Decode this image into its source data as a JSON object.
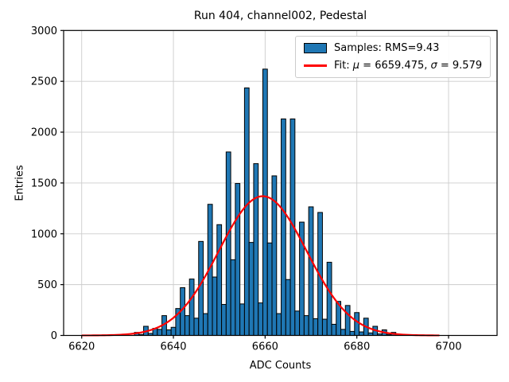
{
  "figure": {
    "title": "Run 404, channel002, Pedestal",
    "xlabel": "ADC Counts",
    "ylabel": "Entries"
  },
  "legend": {
    "samples_label": "Samples: RMS=9.43",
    "fit_prefix": "Fit: ",
    "mu_symbol": "μ",
    "fit_mid": " = 6659.475, ",
    "sigma_symbol": "σ",
    "fit_suffix": " = 9.579"
  },
  "colors": {
    "bar_fill": "#1f77b4",
    "bar_edge": "#000000",
    "fit_line": "#ff0000",
    "grid": "#cccccc",
    "spine": "#000000",
    "legend_border": "#cccccc",
    "background": "#ffffff"
  },
  "chart_data": {
    "type": "bar",
    "subtype": "histogram_with_gaussian_fit",
    "title": "Run 404, channel002, Pedestal",
    "xlabel": "ADC Counts",
    "ylabel": "Entries",
    "bin_width": 1,
    "bin_centers_start": 6632,
    "bin_centers_end": 6689,
    "counts": [
      30,
      10,
      90,
      20,
      70,
      60,
      195,
      55,
      80,
      265,
      470,
      195,
      555,
      170,
      925,
      215,
      1290,
      575,
      1090,
      305,
      1805,
      745,
      1495,
      310,
      2435,
      915,
      1690,
      320,
      2620,
      910,
      1570,
      215,
      2130,
      550,
      2130,
      240,
      1115,
      195,
      1265,
      165,
      1210,
      160,
      720,
      110,
      335,
      60,
      295,
      40,
      225,
      35,
      170,
      25,
      90,
      15,
      55,
      10,
      30,
      8
    ],
    "fit": {
      "mu": 6659.475,
      "sigma": 9.579,
      "rms": 9.43,
      "amplitude": 1370,
      "curve_range": [
        6620,
        6698
      ]
    },
    "x_ticks": [
      6620,
      6640,
      6660,
      6680,
      6700
    ],
    "y_ticks": [
      0,
      500,
      1000,
      1500,
      2000,
      2500,
      3000
    ],
    "xlim": [
      6616.06,
      6710.58
    ],
    "ylim": [
      0,
      3000
    ],
    "grid": true,
    "legend_position": "upper right"
  }
}
